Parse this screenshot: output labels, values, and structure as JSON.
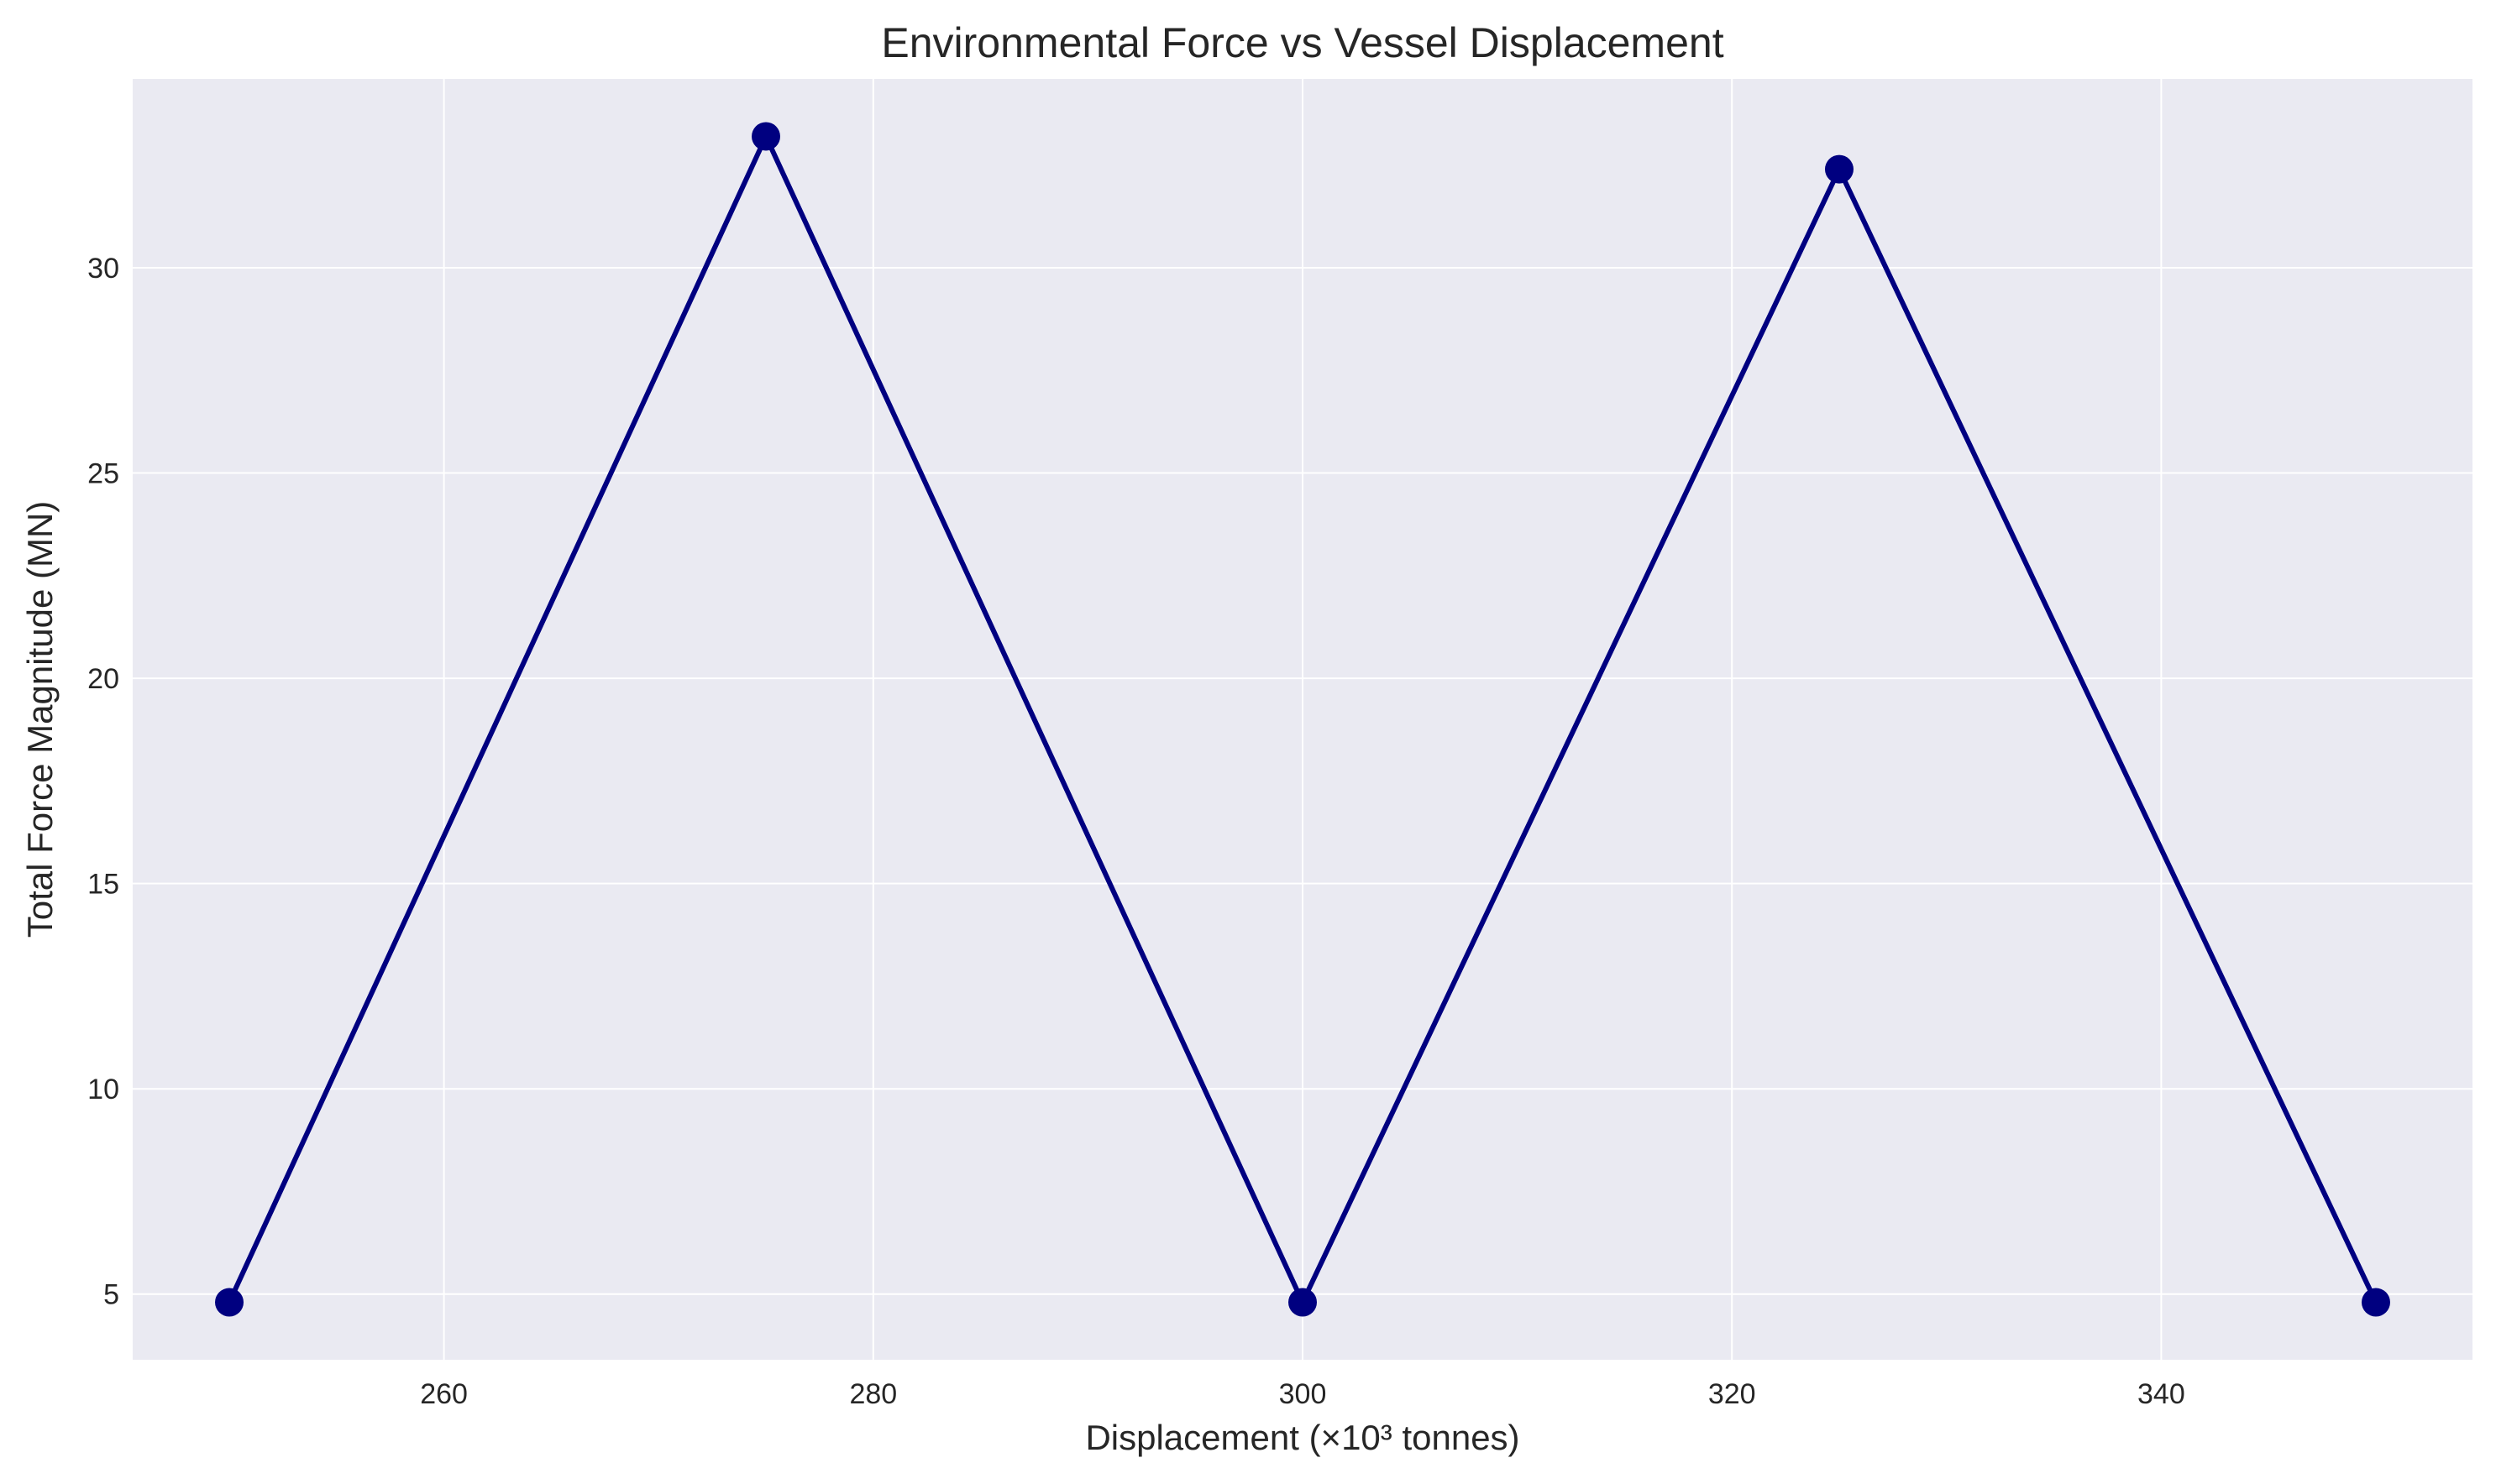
{
  "chart_data": {
    "type": "line",
    "title": "Environmental Force vs Vessel Displacement",
    "xlabel": "Displacement (×10³ tonnes)",
    "ylabel": "Total Force Magnitude (MN)",
    "xlim": [
      245.5,
      354.5
    ],
    "ylim": [
      3.4,
      34.6
    ],
    "xticks": [
      260,
      280,
      300,
      320,
      340
    ],
    "yticks": [
      5,
      10,
      15,
      20,
      25,
      30
    ],
    "grid": true,
    "series": [
      {
        "x": [
          250,
          275,
          300,
          325,
          350
        ],
        "y": [
          4.8,
          33.2,
          4.8,
          32.4,
          4.8
        ]
      }
    ],
    "colors": {
      "line": "#000080",
      "plot_background": "#eaeaf2",
      "grid": "#ffffff"
    }
  }
}
